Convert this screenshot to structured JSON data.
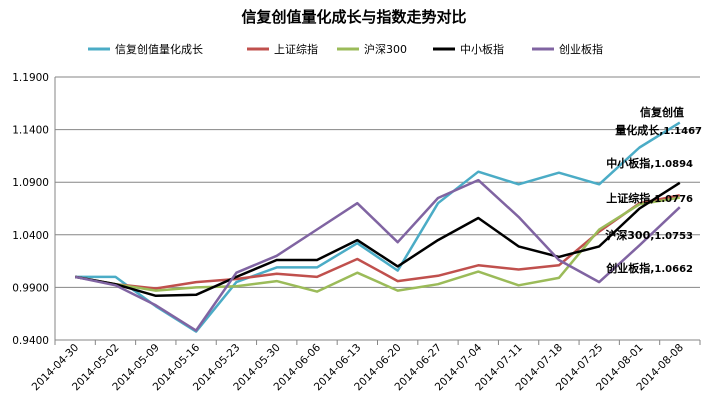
{
  "chart_data": {
    "type": "line",
    "title": "信复创值量化成长与指数走势对比",
    "xlabel": "",
    "ylabel": "",
    "categories": [
      "2014-04-30",
      "2014-05-02",
      "2014-05-09",
      "2014-05-16",
      "2014-05-23",
      "2014-05-30",
      "2014-06-06",
      "2014-06-13",
      "2014-06-20",
      "2014-06-27",
      "2014-07-04",
      "2014-07-11",
      "2014-07-18",
      "2014-07-25",
      "2014-08-01",
      "2014-08-08"
    ],
    "ylim": [
      0.94,
      1.19
    ],
    "yticks": [
      "0.9400",
      "0.9900",
      "1.0400",
      "1.0900",
      "1.1400",
      "1.1900"
    ],
    "grid": "horizontal",
    "legend_position": "top",
    "series": [
      {
        "name": "信复创值量化成长",
        "color": "#4bacc6",
        "values": [
          1.0,
          1.0,
          0.972,
          0.948,
          0.995,
          1.009,
          1.009,
          1.032,
          1.006,
          1.07,
          1.1,
          1.088,
          1.099,
          1.088,
          1.123,
          1.1467
        ]
      },
      {
        "name": "上证综指",
        "color": "#c0504d",
        "values": [
          1.0,
          0.993,
          0.989,
          0.995,
          0.998,
          1.003,
          1.0,
          1.017,
          0.996,
          1.001,
          1.011,
          1.007,
          1.011,
          1.043,
          1.07,
          1.0776
        ]
      },
      {
        "name": "沪深300",
        "color": "#9bbb59",
        "values": [
          1.0,
          0.993,
          0.987,
          0.99,
          0.991,
          0.996,
          0.986,
          1.004,
          0.987,
          0.993,
          1.005,
          0.992,
          0.999,
          1.045,
          1.069,
          1.0753
        ]
      },
      {
        "name": "中小板指",
        "color": "#000000",
        "values": [
          1.0,
          0.993,
          0.982,
          0.983,
          1.0,
          1.016,
          1.016,
          1.035,
          1.01,
          1.035,
          1.056,
          1.029,
          1.019,
          1.029,
          1.065,
          1.0894
        ]
      },
      {
        "name": "创业板指",
        "color": "#8064a2",
        "values": [
          1.0,
          0.992,
          0.973,
          0.949,
          1.004,
          1.02,
          1.045,
          1.07,
          1.033,
          1.075,
          1.092,
          1.057,
          1.016,
          0.995,
          1.03,
          1.0662
        ]
      }
    ],
    "annotations": [
      {
        "lines": [
          "信复创值",
          "量化成长"
        ],
        "value": "1.1467"
      },
      {
        "lines": [
          "中小板指"
        ],
        "value": "1.0894"
      },
      {
        "lines": [
          "上证综指"
        ],
        "value": "1.0776"
      },
      {
        "lines": [
          "沪深300"
        ],
        "value": "1.0753"
      },
      {
        "lines": [
          "创业板指"
        ],
        "value": "1.0662"
      }
    ]
  }
}
